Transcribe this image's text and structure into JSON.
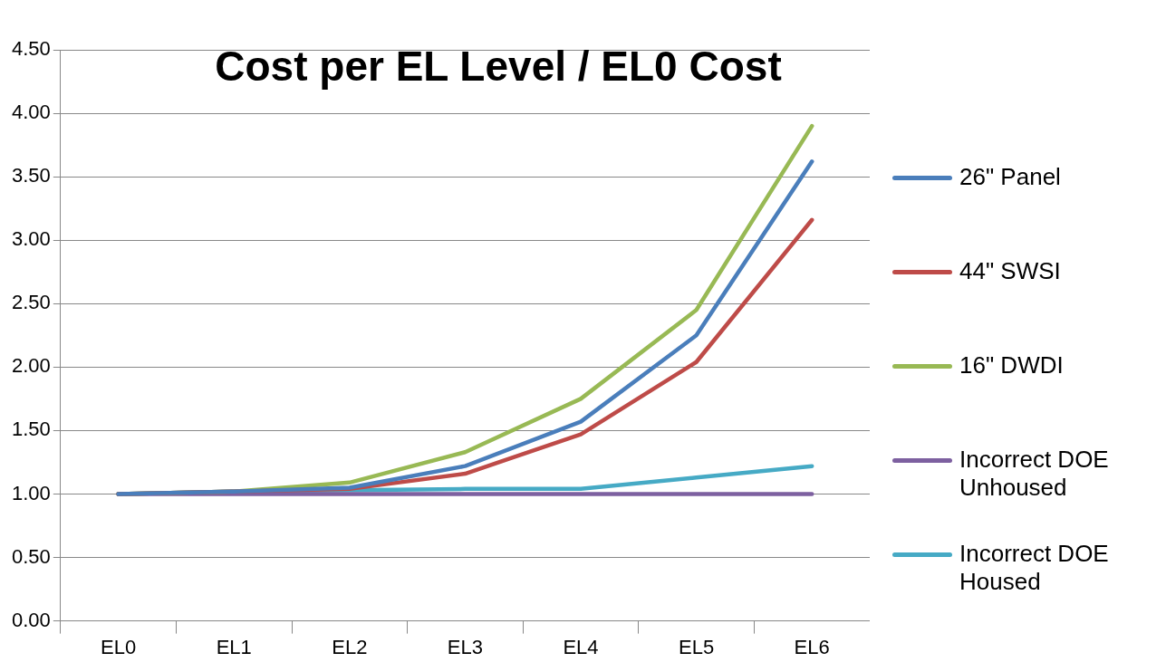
{
  "chart_data": {
    "type": "line",
    "title": "Cost per EL Level / EL0 Cost",
    "categories": [
      "EL0",
      "EL1",
      "EL2",
      "EL3",
      "EL4",
      "EL5",
      "EL6"
    ],
    "series": [
      {
        "name": "26\" Panel",
        "color": "#4a7ebb",
        "values": [
          1.0,
          1.02,
          1.05,
          1.22,
          1.57,
          2.25,
          3.62
        ]
      },
      {
        "name": "44\" SWSI",
        "color": "#be4b48",
        "values": [
          1.0,
          1.02,
          1.04,
          1.16,
          1.47,
          2.04,
          3.16
        ]
      },
      {
        "name": "16\" DWDI",
        "color": "#98b954",
        "values": [
          1.0,
          1.02,
          1.09,
          1.33,
          1.75,
          2.45,
          3.9
        ]
      },
      {
        "name": "Incorrect DOE Unhoused",
        "color": "#7d60a0",
        "values": [
          1.0,
          1.0,
          1.0,
          1.0,
          1.0,
          1.0,
          1.0
        ]
      },
      {
        "name": "Incorrect DOE Housed",
        "color": "#46aac5",
        "values": [
          1.0,
          1.02,
          1.03,
          1.04,
          1.04,
          1.13,
          1.22
        ]
      }
    ],
    "ylim": [
      0,
      4.5
    ],
    "yticks": [
      {
        "value": 0,
        "label": "0.00"
      },
      {
        "value": 0.5,
        "label": "0.50"
      },
      {
        "value": 1,
        "label": "1.00"
      },
      {
        "value": 1.5,
        "label": "1.50"
      },
      {
        "value": 2,
        "label": "2.00"
      },
      {
        "value": 2.5,
        "label": "2.50"
      },
      {
        "value": 3,
        "label": "3.00"
      },
      {
        "value": 3.5,
        "label": "3.50"
      },
      {
        "value": 4,
        "label": "4.00"
      },
      {
        "value": 4.5,
        "label": "4.50"
      }
    ],
    "grid": "y",
    "legend": "right",
    "marker": "none",
    "line_style": "solid"
  }
}
